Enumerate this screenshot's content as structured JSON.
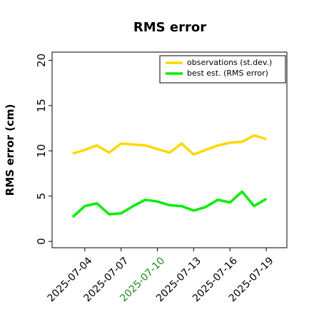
{
  "chart_data": {
    "type": "line",
    "title": "RMS error",
    "ylabel": "RMS error (cm)",
    "x": [
      "2025-07-03",
      "2025-07-04",
      "2025-07-05",
      "2025-07-06",
      "2025-07-07",
      "2025-07-08",
      "2025-07-09",
      "2025-07-10",
      "2025-07-11",
      "2025-07-12",
      "2025-07-13",
      "2025-07-14",
      "2025-07-15",
      "2025-07-16",
      "2025-07-17",
      "2025-07-18",
      "2025-07-19"
    ],
    "series": [
      {
        "name": "observations (st.dev.)",
        "color": "#ffd700",
        "values": [
          9.7,
          10.1,
          10.6,
          9.8,
          10.8,
          10.7,
          10.6,
          10.2,
          9.8,
          10.8,
          9.6,
          10.1,
          10.6,
          10.9,
          11.0,
          11.7,
          11.3
        ]
      },
      {
        "name": "best est. (RMS error)",
        "color": "#00ee00",
        "values": [
          2.7,
          3.9,
          4.2,
          3.0,
          3.1,
          3.9,
          4.6,
          4.4,
          4.0,
          3.9,
          3.4,
          3.8,
          4.6,
          4.3,
          5.5,
          3.9,
          4.7
        ]
      }
    ],
    "xlim": [
      "2025-07-01T07:00:00Z",
      "2025-07-20T17:00:00Z"
    ],
    "xticks": [
      "2025-07-04",
      "2025-07-07",
      "2025-07-10",
      "2025-07-13",
      "2025-07-16",
      "2025-07-19"
    ],
    "xtick_colors": [
      "#000000",
      "#000000",
      "#228b22",
      "#000000",
      "#000000",
      "#000000"
    ],
    "ylim": [
      -0.7,
      20.9
    ],
    "yticks": [
      0,
      5,
      10,
      15,
      20
    ],
    "legend": "upper right"
  }
}
